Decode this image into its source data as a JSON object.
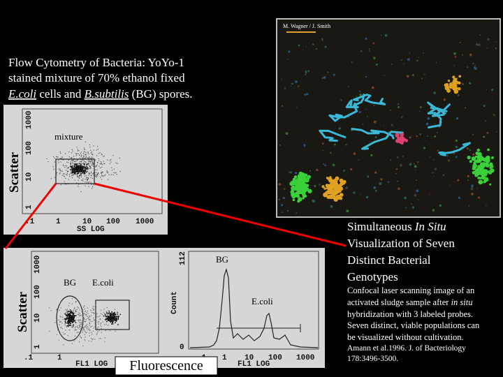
{
  "micrograph": {
    "credit": "M. Wagner / J. Smith"
  },
  "title": {
    "lines": [
      [
        "Flow Cytometry of Bacteria: YoYo-1"
      ],
      [
        "stained mixture of 70% ethanol fixed"
      ],
      [
        "E.coli",
        " cells and ",
        "B.subtilis",
        " (BG) spores."
      ]
    ]
  },
  "top_plot": {
    "y_label": "Scatter",
    "annotation": "mixture",
    "y_ticks": [
      "1000",
      "100",
      "10",
      "1"
    ],
    "x_ticks": [
      ".1",
      "1",
      "10",
      "100",
      "1000"
    ],
    "x_label": "SS LOG"
  },
  "bottom_left_plot": {
    "y_label": "Scatter",
    "y_ticks": [
      "1000",
      "100",
      "10",
      "1"
    ],
    "labels": [
      "BG",
      "E.coli"
    ],
    "x_ticks": [
      ".1",
      "1"
    ],
    "x_label": "FL1 LOG"
  },
  "histogram": {
    "y_label": "Count",
    "y_ticks": [
      "112",
      "0"
    ],
    "labels": [
      "BG",
      "E.coli"
    ],
    "x_ticks": [
      ".1",
      "1",
      "10",
      "100",
      "1000"
    ],
    "x_label": "FL1 LOG"
  },
  "fluorescence_label": "Fluorescence",
  "right_text": {
    "heading": [
      [
        "Simultaneous ",
        "In Situ"
      ],
      [
        "Visualization of Seven"
      ],
      [
        "Distinct Bacterial"
      ],
      [
        "Genotypes"
      ]
    ],
    "caption": [
      [
        "Confocal laser scanning image of an"
      ],
      [
        "activated sludge sample after ",
        "in situ"
      ],
      [
        "hybridization with 3 labeled probes."
      ],
      [
        "Seven distinct, viable populations can"
      ],
      [
        "be visualized without cultivation."
      ]
    ],
    "reference": [
      [
        "Amann et al.1996.  J. of Bacteriology"
      ],
      [
        "178:3496-3500."
      ]
    ]
  }
}
